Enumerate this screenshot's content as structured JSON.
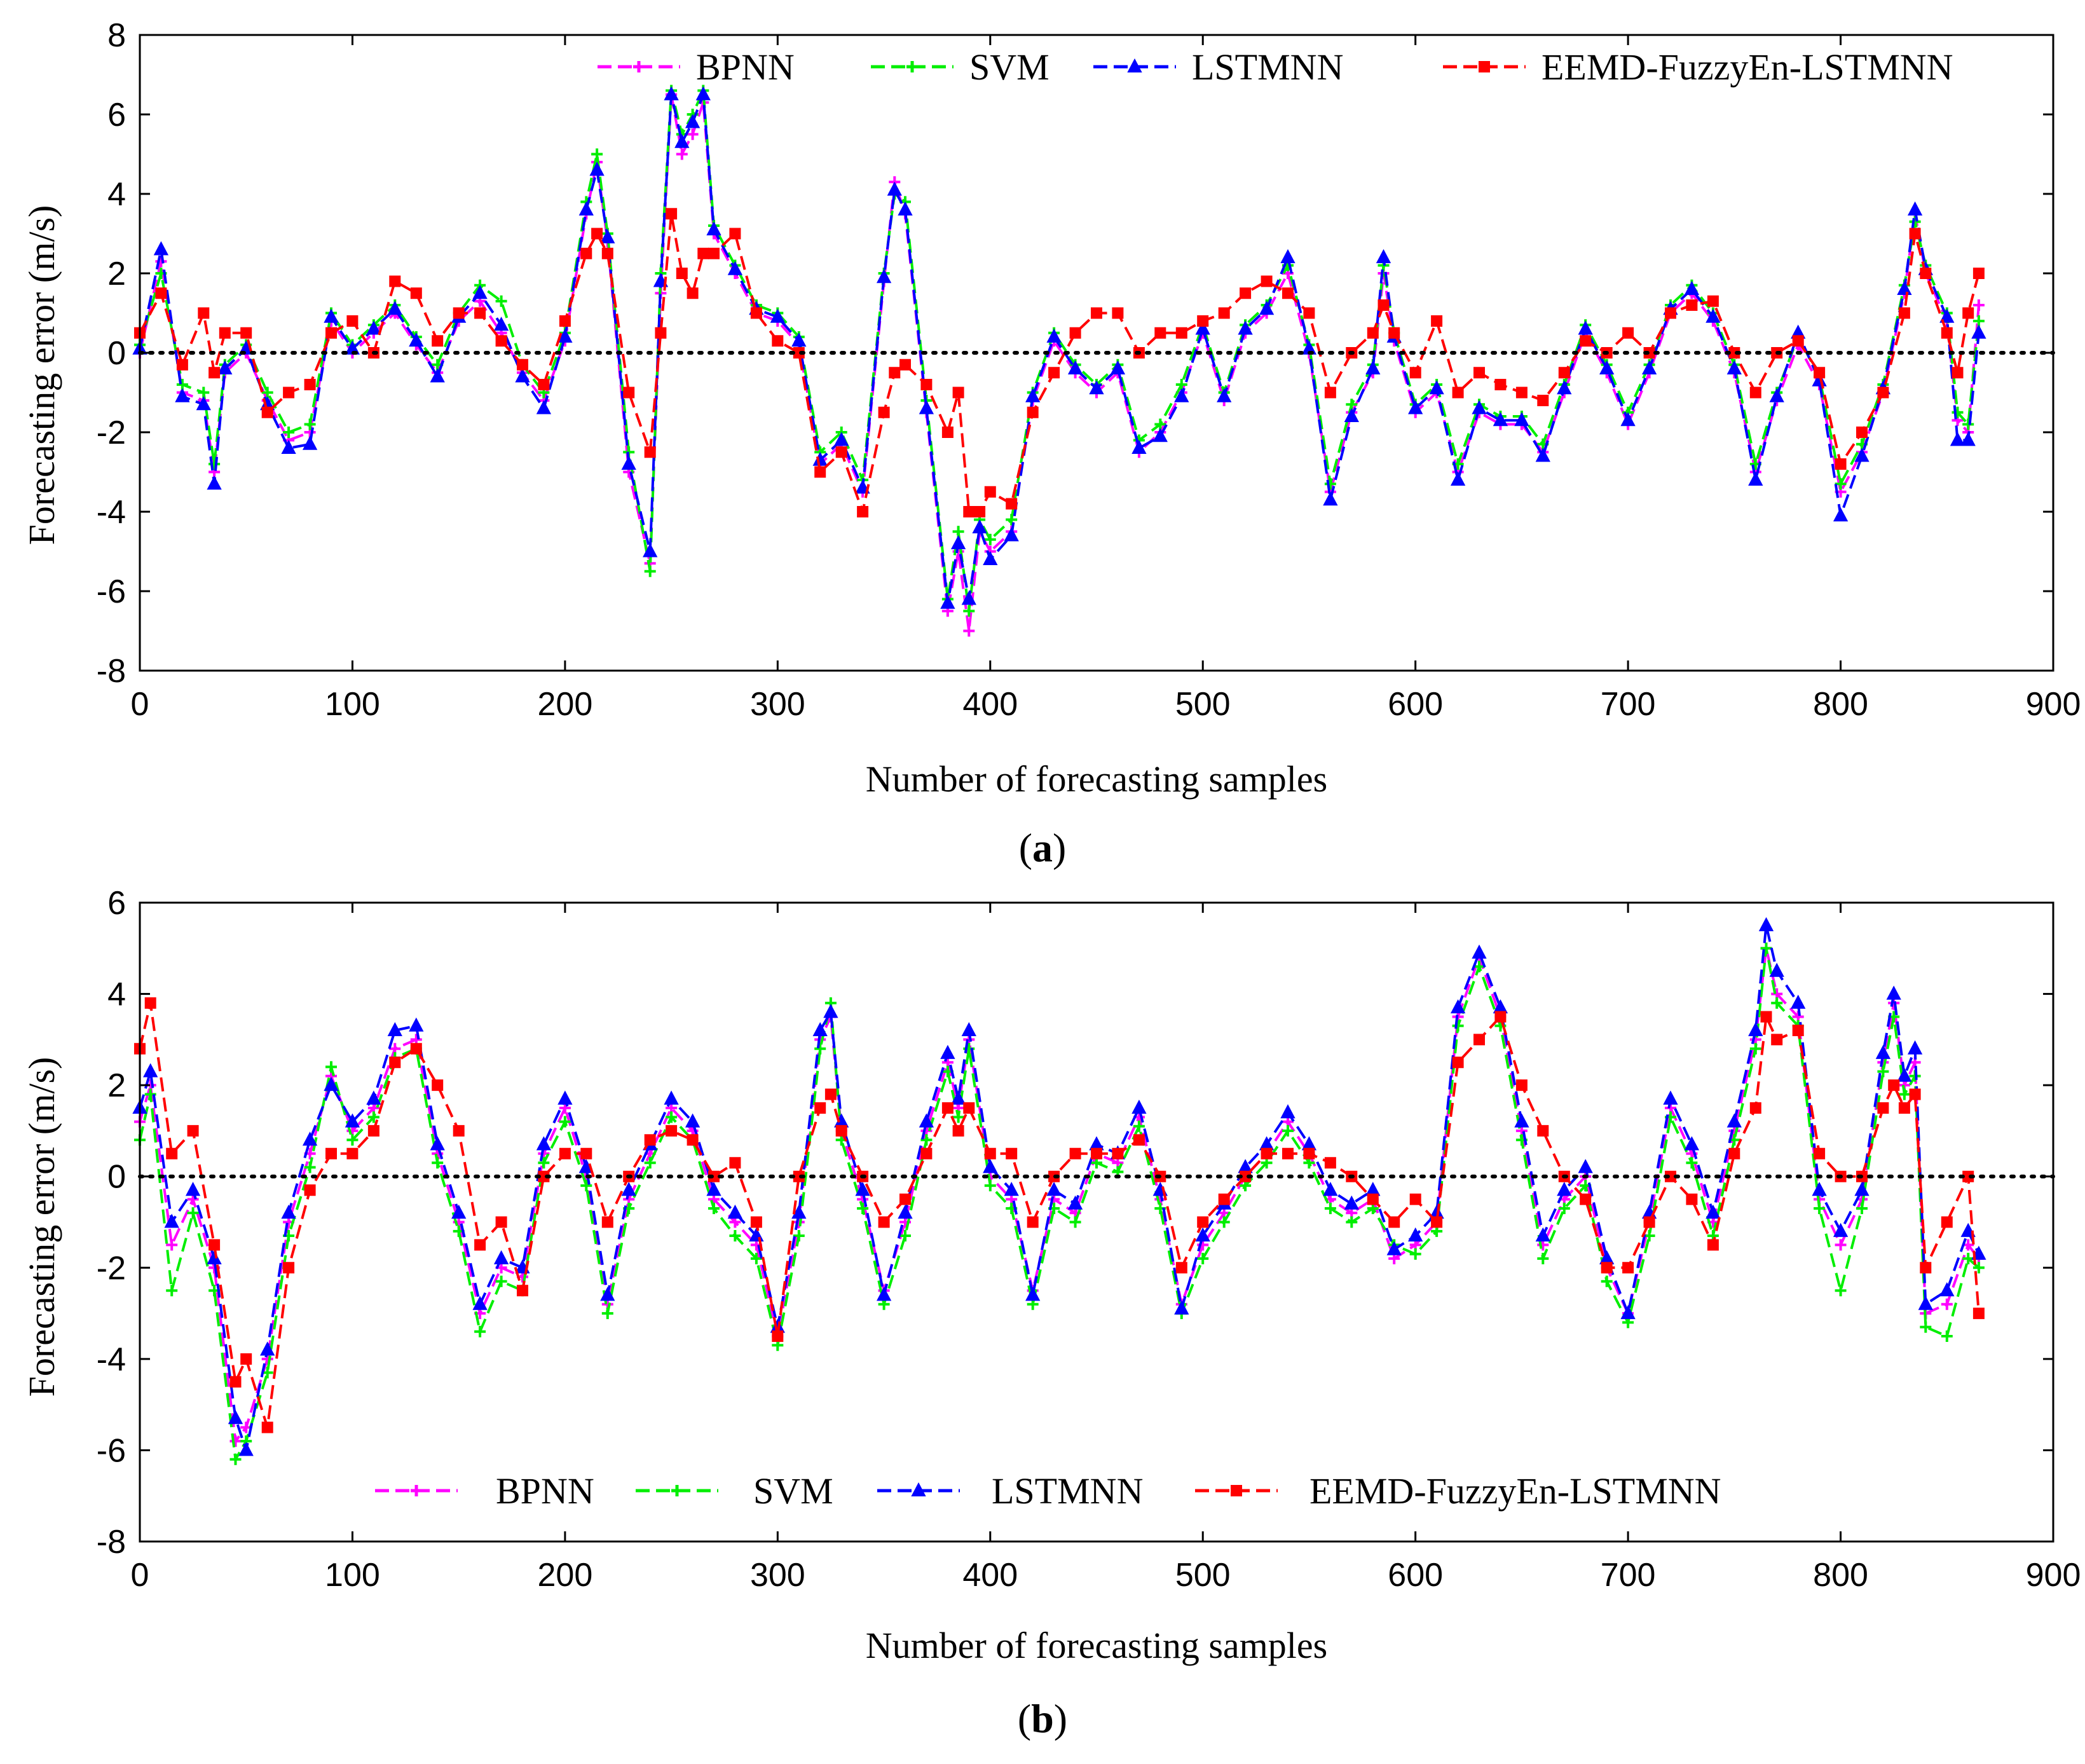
{
  "figure": {
    "panels": [
      "a",
      "b"
    ]
  },
  "chart_data": [
    {
      "type": "line",
      "panel_caption": "(a)",
      "panel_letter": "a",
      "title": "",
      "xlabel": "Number of forecasting samples",
      "ylabel": "Forecasting error (m/s)",
      "xlim": [
        0,
        900
      ],
      "ylim": [
        -8,
        8
      ],
      "xticks": [
        0,
        100,
        200,
        300,
        400,
        500,
        600,
        700,
        800,
        900
      ],
      "yticks": [
        -8,
        -6,
        -4,
        -2,
        0,
        2,
        4,
        6,
        8
      ],
      "grid": false,
      "zero_reference_line": "dotted black at y = 0",
      "legend_position": "top",
      "x": [
        0,
        10,
        20,
        30,
        35,
        40,
        50,
        60,
        70,
        80,
        90,
        100,
        110,
        120,
        130,
        140,
        150,
        160,
        170,
        180,
        190,
        200,
        210,
        215,
        220,
        230,
        240,
        245,
        250,
        255,
        260,
        265,
        270,
        280,
        290,
        300,
        310,
        320,
        330,
        340,
        350,
        355,
        360,
        370,
        380,
        385,
        390,
        395,
        400,
        410,
        420,
        430,
        440,
        450,
        460,
        470,
        480,
        490,
        500,
        510,
        520,
        530,
        540,
        550,
        560,
        570,
        580,
        585,
        590,
        600,
        610,
        620,
        630,
        640,
        650,
        660,
        670,
        680,
        690,
        700,
        710,
        720,
        730,
        740,
        750,
        760,
        770,
        780,
        790,
        800,
        810,
        820,
        830,
        835,
        840,
        850,
        855,
        860,
        865
      ],
      "series": [
        {
          "name": "BPNN",
          "color": "#ff00ff",
          "marker": "plus",
          "values": [
            0.0,
            2.3,
            -1.0,
            -1.2,
            -3.0,
            -0.5,
            0.0,
            -1.2,
            -2.2,
            -2.0,
            0.8,
            0.0,
            0.5,
            1.0,
            0.2,
            -0.5,
            0.8,
            1.3,
            0.5,
            -0.5,
            -1.2,
            0.3,
            3.5,
            4.8,
            2.8,
            -3.0,
            -5.3,
            1.5,
            6.5,
            5.0,
            5.5,
            6.3,
            3.0,
            2.0,
            1.0,
            0.8,
            0.2,
            -2.8,
            -2.3,
            -3.5,
            1.8,
            4.3,
            3.5,
            -1.5,
            -6.5,
            -5.0,
            -7.0,
            -4.5,
            -5.0,
            -4.5,
            -1.2,
            0.3,
            -0.5,
            -1.0,
            -0.5,
            -2.5,
            -2.0,
            -1.0,
            0.5,
            -1.2,
            0.5,
            1.0,
            2.0,
            0.0,
            -3.5,
            -1.5,
            -0.5,
            2.0,
            0.3,
            -1.5,
            -1.0,
            -3.0,
            -1.5,
            -1.8,
            -1.8,
            -2.5,
            -1.0,
            0.5,
            -0.5,
            -1.8,
            -0.5,
            1.0,
            1.5,
            0.8,
            -0.5,
            -3.0,
            -1.2,
            0.2,
            -0.8,
            -3.5,
            -2.5,
            -1.0,
            1.5,
            3.5,
            2.0,
            0.8,
            -1.7,
            -2.0,
            1.2
          ]
        },
        {
          "name": "SVM",
          "color": "#00ee00",
          "marker": "plus",
          "values": [
            0.2,
            2.0,
            -0.8,
            -1.0,
            -2.8,
            -0.3,
            0.2,
            -1.0,
            -2.0,
            -1.8,
            1.0,
            0.2,
            0.7,
            1.2,
            0.4,
            -0.3,
            1.0,
            1.7,
            1.3,
            -0.3,
            -1.0,
            0.5,
            3.8,
            5.0,
            3.0,
            -2.5,
            -5.5,
            2.0,
            6.6,
            5.5,
            6.0,
            6.6,
            3.2,
            2.2,
            1.2,
            1.0,
            0.4,
            -2.5,
            -2.0,
            -3.2,
            2.0,
            4.0,
            3.8,
            -1.2,
            -6.2,
            -4.5,
            -6.5,
            -4.2,
            -4.7,
            -4.2,
            -1.0,
            0.5,
            -0.3,
            -0.8,
            -0.3,
            -2.2,
            -1.8,
            -0.8,
            0.7,
            -1.0,
            0.7,
            1.2,
            2.2,
            0.2,
            -3.3,
            -1.3,
            -0.3,
            2.2,
            0.5,
            -1.3,
            -0.8,
            -2.8,
            -1.3,
            -1.6,
            -1.6,
            -2.3,
            -0.8,
            0.7,
            -0.3,
            -1.5,
            -0.3,
            1.2,
            1.7,
            1.0,
            -0.3,
            -2.8,
            -1.0,
            0.4,
            -0.6,
            -3.3,
            -2.3,
            -0.8,
            1.7,
            3.3,
            2.2,
            1.0,
            -1.5,
            -1.8,
            0.8
          ]
        },
        {
          "name": "LSTMNN",
          "color": "#0000ff",
          "marker": "triangle",
          "values": [
            0.1,
            2.6,
            -1.1,
            -1.3,
            -3.3,
            -0.4,
            0.1,
            -1.3,
            -2.4,
            -2.3,
            0.9,
            0.1,
            0.6,
            1.1,
            0.3,
            -0.6,
            0.9,
            1.5,
            0.7,
            -0.6,
            -1.4,
            0.4,
            3.6,
            4.6,
            2.9,
            -2.8,
            -5.0,
            1.8,
            6.5,
            5.3,
            5.8,
            6.5,
            3.1,
            2.1,
            1.1,
            0.9,
            0.3,
            -2.7,
            -2.2,
            -3.4,
            1.9,
            4.1,
            3.6,
            -1.4,
            -6.3,
            -4.8,
            -6.2,
            -4.4,
            -5.2,
            -4.6,
            -1.1,
            0.4,
            -0.4,
            -0.9,
            -0.4,
            -2.4,
            -2.1,
            -1.1,
            0.6,
            -1.1,
            0.6,
            1.1,
            2.4,
            0.1,
            -3.7,
            -1.6,
            -0.4,
            2.4,
            0.4,
            -1.4,
            -0.9,
            -3.2,
            -1.4,
            -1.7,
            -1.7,
            -2.6,
            -0.9,
            0.6,
            -0.4,
            -1.7,
            -0.4,
            1.1,
            1.6,
            0.9,
            -0.4,
            -3.2,
            -1.1,
            0.5,
            -0.7,
            -4.1,
            -2.6,
            -0.9,
            1.6,
            3.6,
            2.1,
            0.9,
            -2.2,
            -2.2,
            0.5
          ]
        },
        {
          "name": "EEMD-FuzzyEn-LSTMNN",
          "color": "#ff0000",
          "marker": "square",
          "values": [
            0.5,
            1.5,
            -0.3,
            1.0,
            -0.5,
            0.5,
            0.5,
            -1.5,
            -1.0,
            -0.8,
            0.5,
            0.8,
            0.0,
            1.8,
            1.5,
            0.3,
            1.0,
            1.0,
            0.3,
            -0.3,
            -0.8,
            0.8,
            2.5,
            3.0,
            2.5,
            -1.0,
            -2.5,
            0.5,
            3.5,
            2.0,
            1.5,
            2.5,
            2.5,
            3.0,
            1.0,
            0.3,
            0.0,
            -3.0,
            -2.5,
            -4.0,
            -1.5,
            -0.5,
            -0.3,
            -0.8,
            -2.0,
            -1.0,
            -4.0,
            -4.0,
            -3.5,
            -3.8,
            -1.5,
            -0.5,
            0.5,
            1.0,
            1.0,
            0.0,
            0.5,
            0.5,
            0.8,
            1.0,
            1.5,
            1.8,
            1.5,
            1.0,
            -1.0,
            0.0,
            0.5,
            1.2,
            0.5,
            -0.5,
            0.8,
            -1.0,
            -0.5,
            -0.8,
            -1.0,
            -1.2,
            -0.5,
            0.3,
            0.0,
            0.5,
            0.0,
            1.0,
            1.2,
            1.3,
            0.0,
            -1.0,
            0.0,
            0.3,
            -0.5,
            -2.8,
            -2.0,
            -1.0,
            1.0,
            3.0,
            2.0,
            0.5,
            -0.5,
            1.0,
            2.0
          ]
        }
      ]
    },
    {
      "type": "line",
      "panel_caption": "(b)",
      "panel_letter": "b",
      "title": "",
      "xlabel": "Number of forecasting samples",
      "ylabel": "Forecasting error (m/s)",
      "xlim": [
        0,
        900
      ],
      "ylim": [
        -8,
        6
      ],
      "xticks": [
        0,
        100,
        200,
        300,
        400,
        500,
        600,
        700,
        800,
        900
      ],
      "yticks": [
        -8,
        -6,
        -4,
        -2,
        0,
        2,
        4,
        6
      ],
      "grid": false,
      "zero_reference_line": "dotted black at y = 0",
      "legend_position": "bottom",
      "x": [
        0,
        5,
        15,
        25,
        35,
        45,
        50,
        60,
        70,
        80,
        90,
        100,
        110,
        120,
        130,
        140,
        150,
        160,
        170,
        180,
        190,
        200,
        210,
        220,
        230,
        240,
        250,
        260,
        270,
        280,
        290,
        300,
        310,
        320,
        325,
        330,
        340,
        350,
        360,
        370,
        380,
        385,
        390,
        400,
        410,
        420,
        430,
        440,
        450,
        460,
        470,
        480,
        490,
        500,
        510,
        520,
        530,
        540,
        550,
        560,
        570,
        580,
        590,
        600,
        610,
        620,
        630,
        640,
        650,
        660,
        670,
        680,
        690,
        700,
        710,
        720,
        730,
        740,
        750,
        760,
        765,
        770,
        780,
        790,
        800,
        810,
        820,
        825,
        830,
        835,
        840,
        850,
        860,
        865
      ],
      "series": [
        {
          "name": "BPNN",
          "color": "#ff00ff",
          "marker": "plus",
          "values": [
            1.2,
            2.0,
            -1.5,
            -0.5,
            -2.0,
            -5.8,
            -5.5,
            -4.0,
            -1.0,
            0.5,
            2.2,
            1.0,
            1.5,
            2.8,
            3.0,
            0.5,
            -1.0,
            -3.0,
            -2.0,
            -2.2,
            0.5,
            1.5,
            0.0,
            -2.8,
            -0.5,
            0.5,
            1.5,
            1.0,
            -0.5,
            -1.0,
            -1.5,
            -3.5,
            -1.0,
            3.0,
            3.5,
            1.0,
            -0.5,
            -2.5,
            -1.0,
            1.0,
            2.5,
            1.5,
            3.0,
            0.0,
            -0.5,
            -2.5,
            -0.5,
            -0.8,
            0.5,
            0.3,
            1.3,
            -0.5,
            -2.8,
            -1.5,
            -0.8,
            0.0,
            0.5,
            1.2,
            0.5,
            -0.5,
            -0.8,
            -0.5,
            -1.8,
            -1.5,
            -1.0,
            3.5,
            4.8,
            3.5,
            1.0,
            -1.5,
            -0.5,
            0.0,
            -2.0,
            -3.0,
            -1.0,
            1.5,
            0.5,
            -1.0,
            1.0,
            3.0,
            5.0,
            4.0,
            3.5,
            -0.5,
            -1.5,
            -0.5,
            2.5,
            3.8,
            2.0,
            2.5,
            -3.0,
            -2.8,
            -1.5,
            -1.8
          ]
        },
        {
          "name": "SVM",
          "color": "#00ee00",
          "marker": "plus",
          "values": [
            0.8,
            1.8,
            -2.5,
            -0.8,
            -2.5,
            -6.2,
            -5.8,
            -4.3,
            -1.3,
            0.2,
            2.4,
            0.8,
            1.3,
            2.6,
            2.8,
            0.3,
            -1.2,
            -3.4,
            -2.3,
            -2.5,
            0.3,
            1.2,
            -0.2,
            -3.0,
            -0.7,
            0.3,
            1.3,
            0.8,
            -0.7,
            -1.3,
            -1.8,
            -3.7,
            -1.3,
            2.8,
            3.8,
            0.8,
            -0.7,
            -2.8,
            -1.3,
            0.8,
            2.3,
            1.3,
            2.8,
            -0.2,
            -0.7,
            -2.8,
            -0.7,
            -1.0,
            0.3,
            0.1,
            1.1,
            -0.7,
            -3.0,
            -1.8,
            -1.0,
            -0.2,
            0.3,
            1.0,
            0.3,
            -0.7,
            -1.0,
            -0.7,
            -1.5,
            -1.7,
            -1.2,
            3.3,
            4.6,
            3.3,
            0.8,
            -1.8,
            -0.7,
            -0.2,
            -2.3,
            -3.2,
            -1.3,
            1.3,
            0.3,
            -1.3,
            0.8,
            2.8,
            5.0,
            3.8,
            3.3,
            -0.7,
            -2.5,
            -0.7,
            2.3,
            3.5,
            1.8,
            2.2,
            -3.3,
            -3.5,
            -1.8,
            -2.0
          ]
        },
        {
          "name": "LSTMNN",
          "color": "#0000ff",
          "marker": "triangle",
          "values": [
            1.5,
            2.3,
            -1.0,
            -0.3,
            -1.8,
            -5.3,
            -6.0,
            -3.8,
            -0.8,
            0.8,
            2.0,
            1.2,
            1.7,
            3.2,
            3.3,
            0.7,
            -0.8,
            -2.8,
            -1.8,
            -2.0,
            0.7,
            1.7,
            0.2,
            -2.6,
            -0.3,
            0.7,
            1.7,
            1.2,
            -0.3,
            -0.8,
            -1.3,
            -3.3,
            -0.8,
            3.2,
            3.6,
            1.2,
            -0.3,
            -2.6,
            -0.8,
            1.2,
            2.7,
            1.7,
            3.2,
            0.2,
            -0.3,
            -2.6,
            -0.3,
            -0.6,
            0.7,
            0.5,
            1.5,
            -0.3,
            -2.9,
            -1.3,
            -0.6,
            0.2,
            0.7,
            1.4,
            0.7,
            -0.3,
            -0.6,
            -0.3,
            -1.6,
            -1.3,
            -0.8,
            3.7,
            4.9,
            3.7,
            1.2,
            -1.3,
            -0.3,
            0.2,
            -1.8,
            -3.0,
            -0.8,
            1.7,
            0.7,
            -0.8,
            1.2,
            3.2,
            5.5,
            4.5,
            3.8,
            -0.3,
            -1.2,
            -0.3,
            2.7,
            4.0,
            2.2,
            2.8,
            -2.8,
            -2.5,
            -1.2,
            -1.7
          ]
        },
        {
          "name": "EEMD-FuzzyEn-LSTMNN",
          "color": "#ff0000",
          "marker": "square",
          "values": [
            2.8,
            3.8,
            0.5,
            1.0,
            -1.5,
            -4.5,
            -4.0,
            -5.5,
            -2.0,
            -0.3,
            0.5,
            0.5,
            1.0,
            2.5,
            2.8,
            2.0,
            1.0,
            -1.5,
            -1.0,
            -2.5,
            0.0,
            0.5,
            0.5,
            -1.0,
            0.0,
            0.8,
            1.0,
            0.8,
            0.0,
            0.3,
            -1.0,
            -3.5,
            0.0,
            1.5,
            1.8,
            1.0,
            0.0,
            -1.0,
            -0.5,
            0.5,
            1.5,
            1.0,
            1.5,
            0.5,
            0.5,
            -1.0,
            0.0,
            0.5,
            0.5,
            0.5,
            0.8,
            0.0,
            -2.0,
            -1.0,
            -0.5,
            0.0,
            0.5,
            0.5,
            0.5,
            0.3,
            0.0,
            -0.5,
            -1.0,
            -0.5,
            -1.0,
            2.5,
            3.0,
            3.5,
            2.0,
            1.0,
            0.0,
            -0.5,
            -2.0,
            -2.0,
            -1.0,
            0.0,
            -0.5,
            -1.5,
            0.5,
            1.5,
            3.5,
            3.0,
            3.2,
            0.5,
            0.0,
            0.0,
            1.5,
            2.0,
            1.5,
            1.8,
            -2.0,
            -1.0,
            0.0,
            -3.0
          ]
        }
      ]
    }
  ]
}
